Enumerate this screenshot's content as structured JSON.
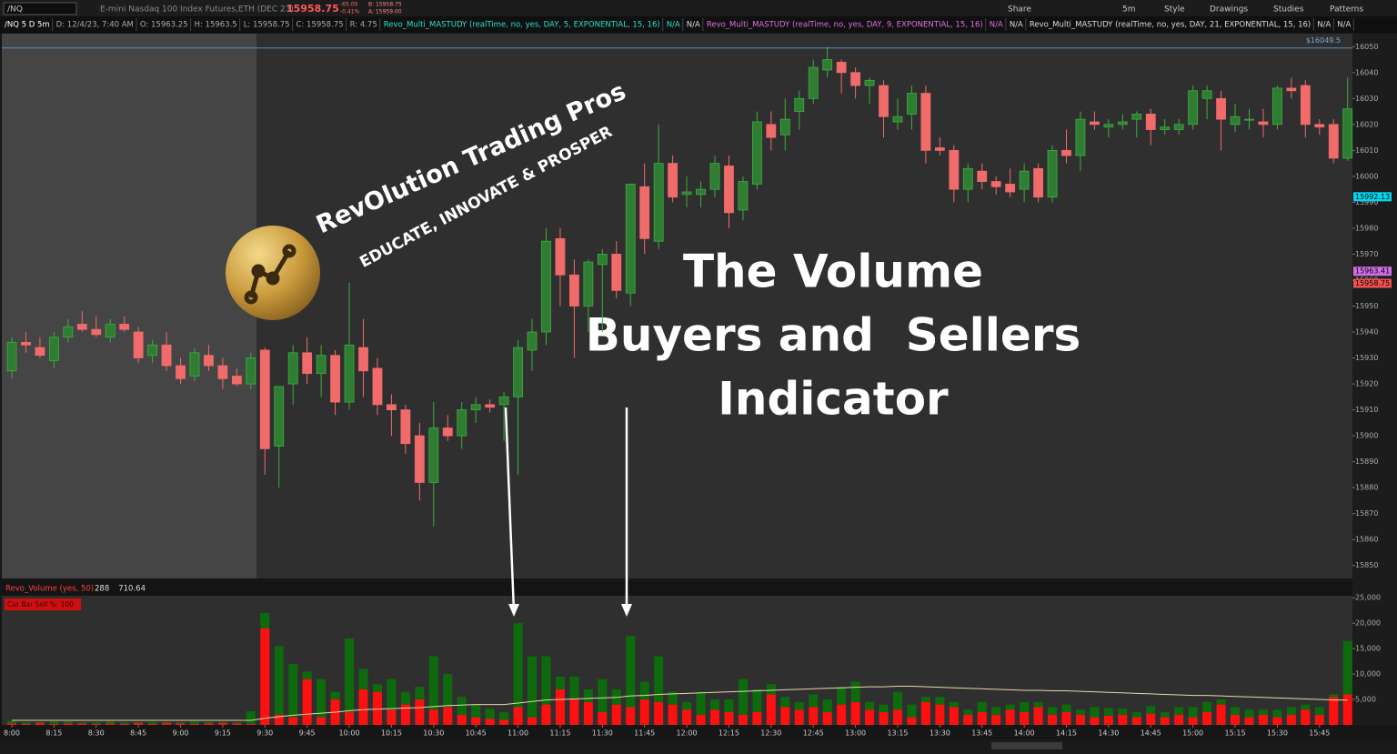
{
  "toolbar": {
    "symbol": "/NQ",
    "description": "E-mini Nasdaq 100 Index Futures,ETH (DEC 23)",
    "last": "15958.75",
    "change": "-65.00",
    "change_pct": "-0.41%",
    "bid": "B: 15958.75",
    "ask": "A: 15959.00",
    "buttons": [
      "Share",
      "5m",
      "Style",
      "Drawings",
      "Studies",
      "Patterns"
    ]
  },
  "info_bar": {
    "items": [
      "/NQ 5 D 5m",
      "D: 12/4/23, 7:40 AM",
      "O: 15963.25",
      "H: 15963.5",
      "L: 15958.75",
      "C: 15958.75",
      "R: 4.75"
    ],
    "studies": [
      {
        "text": "Revo_Multi_MASTUDY (realTime, no, yes, DAY, 5, EXPONENTIAL, 15, 16)",
        "color": "#2ee0c4"
      },
      {
        "text": "N/A",
        "color": "#2ee0c4"
      },
      {
        "text": "N/A",
        "color": "#dddddd"
      },
      {
        "text": "Revo_Multi_MASTUDY (realTime, no, yes, DAY, 9, EXPONENTIAL, 15, 16)",
        "color": "#e070e0"
      },
      {
        "text": "N/A",
        "color": "#e070e0"
      },
      {
        "text": "N/A",
        "color": "#dddddd"
      },
      {
        "text": "Revo_Multi_MASTUDY (realTime, no, yes, DAY, 21, EXPONENTIAL, 15, 16)",
        "color": "#dddddd"
      },
      {
        "text": "N/A",
        "color": "#dddddd"
      },
      {
        "text": "N/A",
        "color": "#dddddd"
      }
    ]
  },
  "overlay": {
    "brand": "RevOlution Trading Pros",
    "tagline": "EDUCATE, INNOVATE & PROSPER",
    "headline": [
      "The Volume",
      "Buyers and  Sellers",
      "Indicator"
    ]
  },
  "chart_data": [
    {
      "type": "candlestick",
      "up_color": "#2e7d32",
      "down_color": "#f26b6b",
      "categories": [
        "8:00",
        null,
        null,
        "8:15",
        null,
        null,
        "8:30",
        null,
        null,
        "8:45",
        null,
        null,
        "9:00",
        null,
        null,
        "9:15",
        null,
        null,
        "9:30",
        null,
        null,
        "9:45",
        null,
        null,
        "10:00",
        null,
        null,
        "10:15",
        null,
        null,
        "10:30",
        null,
        null,
        "10:45",
        null,
        null,
        "11:00",
        null,
        null,
        "11:15",
        null,
        null,
        "11:30",
        null,
        null,
        "11:45",
        null,
        null,
        "12:00",
        null,
        null,
        "12:15",
        null,
        null,
        "12:30",
        null,
        null,
        "12:45",
        null,
        null,
        "13:00",
        null,
        null,
        "13:15",
        null,
        null,
        "13:30",
        null,
        null,
        "13:45",
        null,
        null,
        "14:00",
        null,
        null,
        "14:15",
        null,
        null,
        "14:30",
        null,
        null,
        "14:45",
        null,
        null,
        "15:00",
        null,
        null,
        "15:15",
        null,
        null,
        "15:30",
        null,
        null,
        "15:45",
        null,
        null
      ],
      "open": [
        15925,
        15936,
        15934,
        15929,
        15938,
        15943,
        15941,
        15938,
        15943,
        15940,
        15931,
        15935,
        15927,
        15923,
        15931,
        15927,
        15923,
        15920,
        15933,
        15896,
        15920,
        15932,
        15924,
        15931,
        15913,
        15934,
        15926,
        15912,
        15910,
        15900,
        15882,
        15903,
        15900,
        15910,
        15912,
        15912,
        15915,
        15933,
        15940,
        15976,
        15962,
        15950,
        15966,
        15970,
        15955,
        15996,
        15975,
        16005,
        15993,
        15993,
        15995,
        16004,
        15987,
        15997,
        16020,
        16016,
        16025,
        16030,
        16041,
        16044,
        16040,
        16035,
        16035,
        16021,
        16024,
        16032,
        16011,
        16010,
        15995,
        16002,
        15998,
        15997,
        15995,
        16003,
        15992,
        16010,
        16008,
        16021,
        16019,
        16020,
        16022,
        16024,
        16018,
        16018,
        16020,
        16030,
        16030,
        16020,
        16022,
        16021,
        16020,
        16034,
        16035,
        16020,
        16020,
        16007
      ],
      "high": [
        15938,
        15940,
        15938,
        15940,
        15945,
        15948,
        15946,
        15945,
        15946,
        15942,
        15937,
        15940,
        15930,
        15934,
        15935,
        15930,
        15926,
        15932,
        15934,
        15918,
        15935,
        15938,
        15935,
        15933,
        15959,
        15945,
        15930,
        15916,
        15912,
        15905,
        15913,
        15908,
        15913,
        15915,
        15914,
        15917,
        15937,
        15945,
        15980,
        15980,
        15968,
        15968,
        15972,
        15975,
        15997,
        16005,
        16020,
        16008,
        16000,
        15998,
        16008,
        16008,
        16000,
        16025,
        16025,
        16030,
        16033,
        16045,
        16050,
        16045,
        16042,
        16038,
        16037,
        16030,
        16035,
        16035,
        16015,
        16012,
        16005,
        16005,
        16000,
        16003,
        16005,
        16005,
        16012,
        16018,
        16025,
        16025,
        16022,
        16024,
        16025,
        16026,
        16022,
        16022,
        16035,
        16035,
        16033,
        16028,
        16026,
        16026,
        16035,
        16038,
        16037,
        16022,
        16022,
        16038
      ],
      "low": [
        15922,
        15932,
        15930,
        15926,
        15936,
        15940,
        15938,
        15936,
        15940,
        15928,
        15928,
        15925,
        15920,
        15921,
        15925,
        15918,
        15919,
        15918,
        15885,
        15880,
        15912,
        15920,
        15915,
        15908,
        15910,
        15915,
        15908,
        15900,
        15893,
        15875,
        15865,
        15898,
        15895,
        15905,
        15909,
        15898,
        15885,
        15925,
        15935,
        15950,
        15930,
        15940,
        15940,
        15953,
        15950,
        15970,
        15972,
        15990,
        15988,
        15988,
        15992,
        15980,
        15983,
        15995,
        16010,
        16010,
        16018,
        16028,
        16038,
        16032,
        16030,
        16028,
        16015,
        16018,
        16018,
        16005,
        16008,
        15990,
        15990,
        15995,
        15993,
        15992,
        15990,
        15990,
        15990,
        16005,
        16002,
        16018,
        16015,
        16018,
        16015,
        16012,
        16016,
        16016,
        16018,
        16022,
        16010,
        16017,
        16018,
        16015,
        16018,
        16030,
        16015,
        16016,
        16005,
        16006
      ],
      "close": [
        15936,
        15935,
        15931,
        15938,
        15942,
        15941,
        15939,
        15943,
        15941,
        15930,
        15935,
        15927,
        15922,
        15932,
        15927,
        15922,
        15920,
        15930,
        15895,
        15919,
        15932,
        15924,
        15931,
        15913,
        15935,
        15925,
        15912,
        15910,
        15897,
        15882,
        15903,
        15900,
        15910,
        15912,
        15911,
        15915,
        15934,
        15940,
        15975,
        15962,
        15950,
        15967,
        15970,
        15956,
        15997,
        15976,
        16005,
        15992,
        15994,
        15995,
        16005,
        15986,
        15998,
        16021,
        16015,
        16022,
        16030,
        16042,
        16045,
        16040,
        16035,
        16037,
        16023,
        16023,
        16032,
        16010,
        16010,
        15995,
        16003,
        15998,
        15996,
        15994,
        16002,
        15992,
        16010,
        16008,
        16022,
        16020,
        16020,
        16021,
        16024,
        16018,
        16019,
        16020,
        16033,
        16033,
        16022,
        16023,
        16022,
        16020,
        16034,
        16033,
        16020,
        16019,
        16007,
        16026
      ],
      "ylim": [
        15845,
        16055
      ],
      "yticks": [
        15850,
        15860,
        15870,
        15880,
        15890,
        15900,
        15910,
        15920,
        15930,
        15940,
        15950,
        15960,
        15970,
        15980,
        15990,
        16000,
        16010,
        16020,
        16030,
        16040,
        16050
      ],
      "markers": [
        {
          "value": 16049.5,
          "label": "$16049.5",
          "color": "#5a8fc0"
        },
        {
          "value": 15992.13,
          "color": "#00d8f0"
        },
        {
          "value": 15963.41,
          "color": "#d070e8"
        },
        {
          "value": 15958.75,
          "color": "#f05050"
        }
      ]
    },
    {
      "type": "stacked_bar",
      "title": "Revo_Volume (yes, 50)",
      "readouts": [
        "288",
        "710.64"
      ],
      "label": "Cur Bar Sell %: 100",
      "series": [
        {
          "color": "#ff1010",
          "values": [
            300,
            200,
            400,
            200,
            300,
            300,
            200,
            300,
            200,
            400,
            200,
            400,
            300,
            200,
            300,
            400,
            300,
            200,
            19000,
            2000,
            1500,
            9000,
            1500,
            5000,
            2500,
            7000,
            6500,
            3000,
            4000,
            5000,
            3000,
            3500,
            2000,
            1500,
            1200,
            1000,
            3500,
            1500,
            4000,
            7000,
            5000,
            4500,
            2500,
            4000,
            3500,
            5000,
            4500,
            4000,
            3000,
            2000,
            3000,
            2500,
            2000,
            2500,
            6000,
            3500,
            3000,
            3500,
            2500,
            4000,
            4500,
            3000,
            2500,
            3000,
            1500,
            4500,
            4000,
            3500,
            2000,
            2500,
            2000,
            3000,
            2500,
            3500,
            2000,
            2500,
            2000,
            1500,
            1800,
            2000,
            1500,
            2200,
            1500,
            2000,
            1500,
            2500,
            4000,
            2000,
            1500,
            2000,
            1500,
            2000,
            3000,
            2000,
            5500,
            6000
          ]
        },
        {
          "color": "#0d6b0d",
          "values": [
            500,
            300,
            200,
            500,
            400,
            200,
            300,
            400,
            300,
            200,
            400,
            200,
            200,
            500,
            300,
            200,
            200,
            2500,
            3000,
            13500,
            10500,
            1500,
            7500,
            1500,
            14500,
            4000,
            1500,
            6000,
            2500,
            2500,
            10500,
            6500,
            3500,
            2500,
            2000,
            1500,
            16500,
            12000,
            9500,
            2500,
            4500,
            2500,
            6500,
            3000,
            14000,
            3500,
            9000,
            2500,
            1500,
            4500,
            2000,
            2500,
            7000,
            4500,
            2000,
            2000,
            1500,
            2500,
            2500,
            3500,
            4000,
            1500,
            1500,
            3500,
            2500,
            1000,
            1500,
            1000,
            1000,
            2000,
            1500,
            1000,
            2000,
            1000,
            1500,
            1500,
            1000,
            2000,
            1500,
            1200,
            1000,
            1500,
            1000,
            1500,
            2000,
            2000,
            1000,
            1500,
            1500,
            1000,
            1500,
            1500,
            1000,
            1500,
            500,
            10500
          ]
        }
      ],
      "average": {
        "color": "#e6d6a6",
        "values": [
          900,
          900,
          900,
          900,
          900,
          900,
          900,
          900,
          900,
          900,
          900,
          900,
          900,
          900,
          900,
          900,
          900,
          900,
          1300,
          1600,
          1900,
          2100,
          2300,
          2500,
          2800,
          3000,
          3100,
          3200,
          3300,
          3400,
          3600,
          3800,
          3900,
          4000,
          4000,
          4000,
          4300,
          4600,
          4900,
          5000,
          5100,
          5200,
          5300,
          5400,
          5700,
          5800,
          6000,
          6100,
          6200,
          6300,
          6400,
          6500,
          6600,
          6700,
          6800,
          6900,
          7000,
          7100,
          7200,
          7300,
          7400,
          7500,
          7500,
          7600,
          7600,
          7500,
          7400,
          7300,
          7200,
          7100,
          7000,
          6900,
          6800,
          6800,
          6700,
          6700,
          6600,
          6500,
          6400,
          6300,
          6200,
          6100,
          6000,
          5900,
          5800,
          5800,
          5700,
          5600,
          5500,
          5400,
          5300,
          5200,
          5100,
          5000,
          4900,
          4900
        ]
      },
      "ylim": [
        0,
        25400
      ],
      "yticks": [
        {
          "value": 5000,
          "label": "5,000"
        },
        {
          "value": 10000,
          "label": "10,000"
        },
        {
          "value": 15000,
          "label": "15,000"
        },
        {
          "value": 20000,
          "label": "20,000"
        },
        {
          "value": 25000,
          "label": "25,000"
        }
      ]
    }
  ]
}
